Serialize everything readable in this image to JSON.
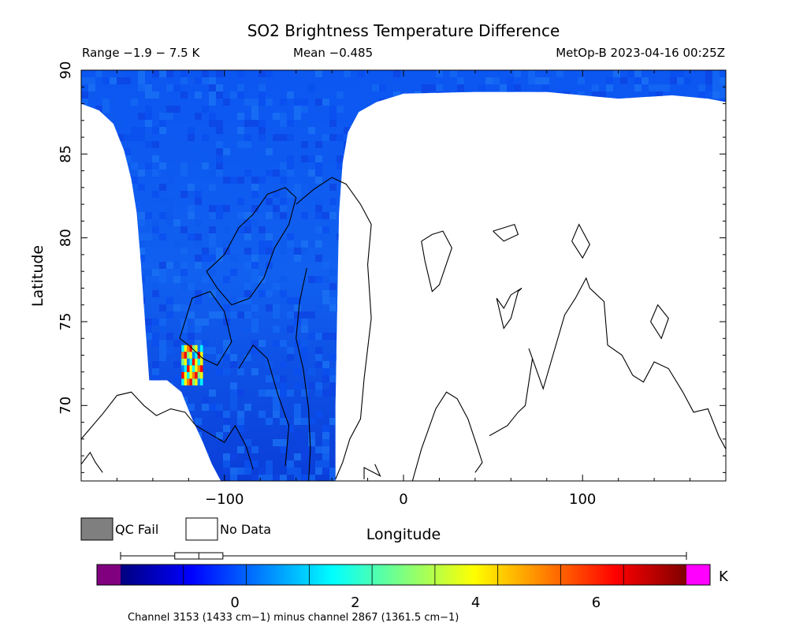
{
  "title": "SO2 Brightness Temperature Difference",
  "range_label": "Range −1.9 − 7.5 K",
  "mean_label": "Mean −0.485",
  "satellite_time": "MetOp-B 2023-04-16 00:25Z",
  "footer_note": "Channel 3153 (1433 cm−1) minus channel 2867 (1361.5 cm−1)",
  "colorbar_unit": "K",
  "legend": {
    "qc_fail": "QC Fail",
    "no_data": "No Data",
    "qc_fail_color": "#7f7f7f",
    "no_data_color": "#ffffff"
  },
  "colors": {
    "under_range": "#800080",
    "over_range": "#ff00ff",
    "background_field": "#1a5bf0"
  },
  "chart_data": {
    "type": "heatmap",
    "projection": "equirectangular",
    "xlabel": "Longitude",
    "ylabel": "Latitude",
    "xlim": [
      -180,
      180
    ],
    "ylim": [
      65.5,
      90
    ],
    "x_ticks": [
      -100,
      0,
      100
    ],
    "x_tick_labels": [
      "−100",
      "0",
      "100"
    ],
    "y_ticks": [
      70,
      75,
      80,
      85,
      90
    ],
    "y_tick_labels": [
      "70",
      "75",
      "80",
      "85",
      "90"
    ],
    "colorbar": {
      "vmin": -1.9,
      "vmax": 7.5,
      "ticks": [
        0,
        2,
        4,
        6
      ],
      "tick_labels": [
        "0",
        "2",
        "4",
        "6"
      ],
      "colormap": [
        "#00007f",
        "#0000ff",
        "#0080ff",
        "#00ffff",
        "#7fff7f",
        "#ffff00",
        "#ff8000",
        "#ff0000",
        "#7f0000"
      ]
    },
    "boxplot": {
      "whisker_low": -1.9,
      "q1": -1.0,
      "median": -0.6,
      "q3": -0.2,
      "whisker_high": 7.5
    },
    "swath_boundary": {
      "left_edge": [
        [
          -180,
          88.0
        ],
        [
          -170,
          87.6
        ],
        [
          -162,
          86.8
        ],
        [
          -156,
          85.2
        ],
        [
          -152,
          83.5
        ],
        [
          -149,
          81.5
        ],
        [
          -147,
          79.0
        ],
        [
          -145,
          76.0
        ],
        [
          -143,
          73.0
        ],
        [
          -142,
          71.5
        ]
      ],
      "bottom_edge": [
        [
          -142,
          71.5
        ],
        [
          -132,
          71.5
        ],
        [
          -124,
          70.8
        ],
        [
          -118,
          69.2
        ],
        [
          -112,
          67.8
        ],
        [
          -107,
          66.5
        ],
        [
          -102,
          65.5
        ]
      ],
      "right_edge": [
        [
          -38,
          65.5
        ],
        [
          -38,
          70.0
        ],
        [
          -37,
          76.0
        ],
        [
          -36,
          81.5
        ],
        [
          -34,
          84.5
        ],
        [
          -31,
          86.3
        ],
        [
          -25,
          87.5
        ],
        [
          -15,
          88.1
        ],
        [
          0,
          88.6
        ],
        [
          40,
          88.7
        ],
        [
          80,
          88.7
        ],
        [
          100,
          88.5
        ],
        [
          120,
          88.3
        ],
        [
          150,
          88.5
        ],
        [
          170,
          88.3
        ],
        [
          180,
          88.1
        ]
      ]
    },
    "anomaly": {
      "lon_range": [
        -124,
        -112
      ],
      "lat_range": [
        71.2,
        73.6
      ],
      "max_value": 7.5
    }
  }
}
